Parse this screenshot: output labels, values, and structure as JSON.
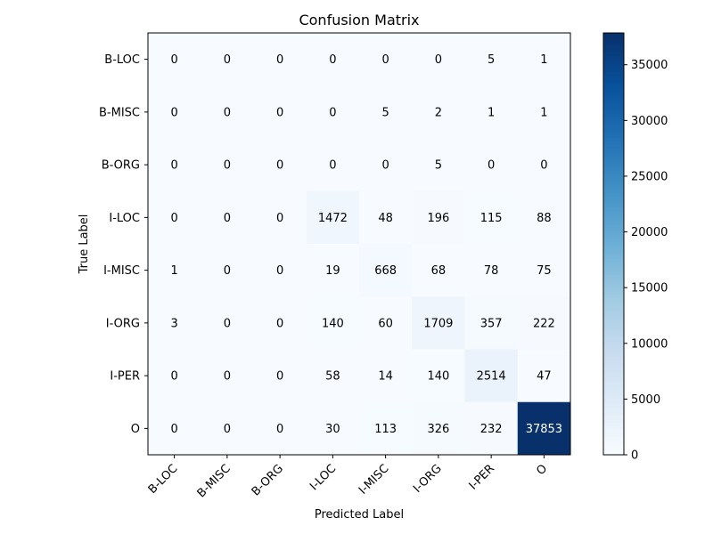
{
  "chart_data": {
    "type": "heatmap",
    "title": "Confusion Matrix",
    "xlabel": "Predicted Label",
    "ylabel": "True Label",
    "x_categories": [
      "B-LOC",
      "B-MISC",
      "B-ORG",
      "I-LOC",
      "I-MISC",
      "I-ORG",
      "I-PER",
      "O"
    ],
    "y_categories": [
      "B-LOC",
      "B-MISC",
      "B-ORG",
      "I-LOC",
      "I-MISC",
      "I-ORG",
      "I-PER",
      "O"
    ],
    "values": [
      [
        0,
        0,
        0,
        0,
        0,
        0,
        5,
        1
      ],
      [
        0,
        0,
        0,
        0,
        5,
        2,
        1,
        1
      ],
      [
        0,
        0,
        0,
        0,
        0,
        5,
        0,
        0
      ],
      [
        0,
        0,
        0,
        1472,
        48,
        196,
        115,
        88
      ],
      [
        1,
        0,
        0,
        19,
        668,
        68,
        78,
        75
      ],
      [
        3,
        0,
        0,
        140,
        60,
        1709,
        357,
        222
      ],
      [
        0,
        0,
        0,
        58,
        14,
        140,
        2514,
        47
      ],
      [
        0,
        0,
        0,
        30,
        113,
        326,
        232,
        37853
      ]
    ],
    "colormap": "Blues",
    "colormap_stops": [
      "#f7fbff",
      "#deebf7",
      "#c6dbef",
      "#9ecae1",
      "#6baed6",
      "#4292c6",
      "#2171b5",
      "#08519c",
      "#08306b"
    ],
    "colorbar": {
      "min": 0,
      "max": 37853,
      "ticks": [
        0,
        5000,
        10000,
        15000,
        20000,
        25000,
        30000,
        35000
      ]
    },
    "grid": false,
    "x_tick_rotation": "45deg"
  }
}
